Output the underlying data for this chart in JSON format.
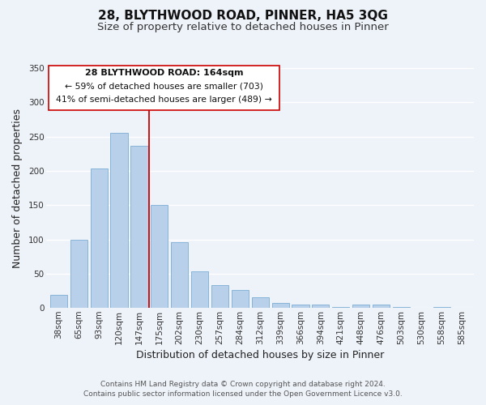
{
  "title": "28, BLYTHWOOD ROAD, PINNER, HA5 3QG",
  "subtitle": "Size of property relative to detached houses in Pinner",
  "xlabel": "Distribution of detached houses by size in Pinner",
  "ylabel": "Number of detached properties",
  "bar_labels": [
    "38sqm",
    "65sqm",
    "93sqm",
    "120sqm",
    "147sqm",
    "175sqm",
    "202sqm",
    "230sqm",
    "257sqm",
    "284sqm",
    "312sqm",
    "339sqm",
    "366sqm",
    "394sqm",
    "421sqm",
    "448sqm",
    "476sqm",
    "503sqm",
    "530sqm",
    "558sqm",
    "585sqm"
  ],
  "bar_values": [
    19,
    100,
    204,
    256,
    236,
    150,
    96,
    53,
    33,
    26,
    15,
    7,
    5,
    5,
    1,
    5,
    5,
    1,
    0,
    1,
    0
  ],
  "bar_color": "#b8d0ea",
  "bar_edge_color": "#7aadd4",
  "vline_x": 4.5,
  "vline_color": "#cc0000",
  "ylim": [
    0,
    350
  ],
  "yticks": [
    0,
    50,
    100,
    150,
    200,
    250,
    300,
    350
  ],
  "annotation_title": "28 BLYTHWOOD ROAD: 164sqm",
  "annotation_line1": "← 59% of detached houses are smaller (703)",
  "annotation_line2": "41% of semi-detached houses are larger (489) →",
  "footer1": "Contains HM Land Registry data © Crown copyright and database right 2024.",
  "footer2": "Contains public sector information licensed under the Open Government Licence v3.0.",
  "background_color": "#eef2f9",
  "plot_background": "#eef2f9",
  "grid_color": "#ffffff",
  "title_fontsize": 11,
  "subtitle_fontsize": 9.5,
  "axis_label_fontsize": 9,
  "tick_fontsize": 7.5,
  "footer_fontsize": 6.5,
  "ann_fontsize_title": 8,
  "ann_fontsize_lines": 7.8
}
